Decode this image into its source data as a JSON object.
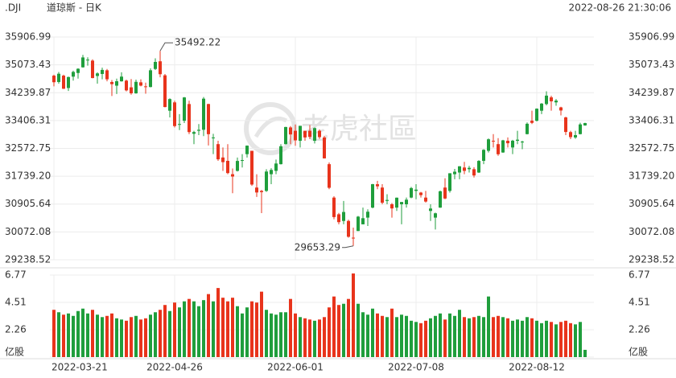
{
  "chart_data": {
    "type": "candlestick",
    "symbol": ".DJI",
    "name": "道琼斯 - 日K",
    "timestamp": "2022-08-26 21:30:06",
    "watermark": "老虎社區",
    "up_color": "#1f9e3c",
    "down_color": "#e8341c",
    "grid": true,
    "categories": [
      "2022-03-21",
      null,
      null,
      null,
      null,
      null,
      null,
      null,
      null,
      null,
      null,
      null,
      null,
      null,
      null,
      null,
      null,
      null,
      null,
      null,
      null,
      null,
      null,
      null,
      null,
      "2022-04-26",
      null,
      null,
      null,
      null,
      null,
      null,
      null,
      null,
      null,
      null,
      null,
      null,
      null,
      null,
      null,
      null,
      null,
      null,
      null,
      null,
      null,
      null,
      null,
      null,
      "2022-06-01",
      null,
      null,
      null,
      null,
      null,
      null,
      null,
      null,
      null,
      null,
      null,
      null,
      null,
      null,
      null,
      null,
      null,
      null,
      null,
      null,
      null,
      null,
      null,
      null,
      "2022-07-08",
      null,
      null,
      null,
      null,
      null,
      null,
      null,
      null,
      null,
      null,
      null,
      null,
      null,
      null,
      null,
      null,
      null,
      null,
      null,
      null,
      null,
      null,
      null,
      null,
      "2022-08-12",
      null,
      null,
      null,
      null,
      null,
      null,
      null,
      null,
      null,
      null
    ],
    "ylim": [
      29238.52,
      35906.99
    ],
    "yticks": [
      35906.99,
      35073.43,
      34239.87,
      33406.31,
      32572.75,
      {
        "value": 31739.2,
        "label": "31739.20"
      },
      30905.64,
      30072.08,
      29238.52
    ],
    "ohlc": [
      [
        34750,
        34780,
        34430,
        34553
      ],
      [
        34560,
        34860,
        34510,
        34807
      ],
      [
        34750,
        34780,
        34350,
        34358
      ],
      [
        34380,
        34720,
        34290,
        34708
      ],
      [
        34720,
        34900,
        34600,
        34862
      ],
      [
        34830,
        34970,
        34660,
        34956
      ],
      [
        35000,
        35372,
        34990,
        35295
      ],
      [
        35220,
        35300,
        35050,
        35229
      ],
      [
        35200,
        35240,
        34670,
        34678
      ],
      [
        34740,
        34850,
        34510,
        34818
      ],
      [
        34800,
        34990,
        34640,
        34922
      ],
      [
        34910,
        34950,
        34580,
        34641
      ],
      [
        34560,
        34620,
        34140,
        34496
      ],
      [
        34450,
        34660,
        34200,
        34583
      ],
      [
        34580,
        34850,
        34570,
        34721
      ],
      [
        34600,
        34630,
        34280,
        34309
      ],
      [
        34400,
        34650,
        34180,
        34221
      ],
      [
        34220,
        34630,
        34210,
        34565
      ],
      [
        34550,
        34640,
        34430,
        34452
      ],
      [
        34430,
        34540,
        34210,
        34412
      ],
      [
        34410,
        34970,
        34400,
        34911
      ],
      [
        34950,
        35270,
        34920,
        35161
      ],
      [
        35180,
        35492.22,
        34700,
        34793
      ],
      [
        34760,
        34800,
        33800,
        33811
      ],
      [
        33700,
        34070,
        33500,
        34049
      ],
      [
        33950,
        34000,
        33200,
        33241
      ],
      [
        33300,
        33600,
        33120,
        33302
      ],
      [
        33400,
        34110,
        33330,
        34098
      ],
      [
        33900,
        34000,
        33000,
        33061
      ],
      [
        33010,
        33100,
        32700,
        33062
      ],
      [
        33100,
        33300,
        32970,
        33129
      ],
      [
        33130,
        34110,
        32940,
        34061
      ],
      [
        33900,
        33910,
        32660,
        32998
      ],
      [
        32900,
        33010,
        32400,
        32900
      ],
      [
        32700,
        32800,
        32200,
        32246
      ],
      [
        32300,
        32600,
        31900,
        32161
      ],
      [
        32200,
        32700,
        31800,
        31834
      ],
      [
        31800,
        31970,
        31230,
        31730
      ],
      [
        31900,
        32300,
        31880,
        32197
      ],
      [
        32200,
        32400,
        32000,
        32223
      ],
      [
        32400,
        32660,
        32300,
        32655
      ],
      [
        32500,
        32500,
        31450,
        31490
      ],
      [
        31400,
        31800,
        31120,
        31253
      ],
      [
        31300,
        31330,
        30635,
        31262
      ],
      [
        31300,
        31950,
        31270,
        31880
      ],
      [
        31800,
        31980,
        31500,
        31928
      ],
      [
        31900,
        32240,
        31800,
        32120
      ],
      [
        32100,
        32700,
        32090,
        32637
      ],
      [
        32700,
        33220,
        32690,
        33213
      ],
      [
        33200,
        33240,
        32700,
        32990
      ],
      [
        33100,
        33290,
        32650,
        32813
      ],
      [
        32800,
        33250,
        32600,
        33248
      ],
      [
        33100,
        33100,
        32800,
        32900
      ],
      [
        33100,
        33270,
        32850,
        32916
      ],
      [
        32800,
        33200,
        32720,
        33180
      ],
      [
        33100,
        33140,
        32860,
        32910
      ],
      [
        32900,
        32950,
        32270,
        32273
      ],
      [
        32100,
        32150,
        31350,
        31393
      ],
      [
        31100,
        31140,
        30450,
        30517
      ],
      [
        30600,
        30640,
        30300,
        30365
      ],
      [
        30400,
        31000,
        30300,
        30669
      ],
      [
        30400,
        30440,
        29900,
        29927
      ],
      [
        29900,
        30200,
        29653.29,
        29888
      ],
      [
        30100,
        30550,
        30100,
        30530
      ],
      [
        30300,
        30800,
        30300,
        30483
      ],
      [
        30500,
        30750,
        30250,
        30677
      ],
      [
        30800,
        31510,
        30780,
        31501
      ],
      [
        31500,
        31600,
        31350,
        31438
      ],
      [
        31400,
        31500,
        30900,
        30947
      ],
      [
        31000,
        31200,
        30900,
        31029
      ],
      [
        30900,
        30940,
        30500,
        30775
      ],
      [
        30800,
        31100,
        30700,
        31097
      ],
      [
        30900,
        30970,
        30300,
        30968
      ],
      [
        30900,
        31100,
        30800,
        31037
      ],
      [
        31100,
        31420,
        31080,
        31385
      ],
      [
        31300,
        31500,
        31050,
        31338
      ],
      [
        31250,
        31270,
        31100,
        31174
      ],
      [
        31100,
        31300,
        30950,
        30981
      ],
      [
        30700,
        30900,
        30400,
        30773
      ],
      [
        30500,
        30650,
        30143,
        30630
      ],
      [
        30800,
        31310,
        30790,
        31289
      ],
      [
        31400,
        31680,
        31050,
        31073
      ],
      [
        31300,
        31830,
        31250,
        31828
      ],
      [
        31800,
        31960,
        31650,
        31875
      ],
      [
        31850,
        32040,
        31650,
        32037
      ],
      [
        32000,
        32170,
        31800,
        31900
      ],
      [
        31950,
        32050,
        31850,
        31990
      ],
      [
        31950,
        32010,
        31700,
        31762
      ],
      [
        31850,
        32220,
        31840,
        32198
      ],
      [
        32200,
        32550,
        32100,
        32530
      ],
      [
        32500,
        32870,
        32450,
        32845
      ],
      [
        32800,
        33000,
        32600,
        32798
      ],
      [
        32700,
        32880,
        32350,
        32397
      ],
      [
        32450,
        32830,
        32440,
        32813
      ],
      [
        32800,
        32900,
        32600,
        32727
      ],
      [
        32600,
        32830,
        32400,
        32803
      ],
      [
        32800,
        33100,
        32700,
        32833
      ],
      [
        32750,
        32800,
        32550,
        32775
      ],
      [
        33000,
        33350,
        32990,
        33310
      ],
      [
        33400,
        33700,
        33300,
        33337
      ],
      [
        33400,
        33770,
        33380,
        33761
      ],
      [
        33700,
        33930,
        33600,
        33913
      ],
      [
        33900,
        34281,
        33860,
        34152
      ],
      [
        34100,
        34150,
        33700,
        33981
      ],
      [
        33950,
        34050,
        33850,
        34003
      ],
      [
        33800,
        33820,
        33560,
        33707
      ],
      [
        33500,
        33520,
        32970,
        33064
      ],
      [
        33060,
        33100,
        32850,
        32910
      ],
      [
        32900,
        33100,
        32860,
        32970
      ],
      [
        33000,
        33340,
        32990,
        33291
      ],
      [
        33260,
        33340,
        33250,
        33330
      ]
    ],
    "volume_ylim": [
      0,
      6.77
    ],
    "volume_ticks": [
      6.77,
      4.51,
      2.26,
      {
        "value": 0,
        "label": "亿股"
      }
    ],
    "volume": [
      3.9,
      3.7,
      3.5,
      3.6,
      3.4,
      3.8,
      4.0,
      3.6,
      3.9,
      3.5,
      3.3,
      3.4,
      3.6,
      3.2,
      3.1,
      3.0,
      3.3,
      3.4,
      3.1,
      3.2,
      3.5,
      3.7,
      3.9,
      4.3,
      3.8,
      4.5,
      4.1,
      4.6,
      4.8,
      4.6,
      4.2,
      4.7,
      5.2,
      4.6,
      5.7,
      4.9,
      4.6,
      4.9,
      4.2,
      3.6,
      4.1,
      4.6,
      4.5,
      5.4,
      3.9,
      3.6,
      3.5,
      3.7,
      3.7,
      4.8,
      3.6,
      3.3,
      3.2,
      3.1,
      3.0,
      3.1,
      3.3,
      4.1,
      5.0,
      4.3,
      4.4,
      4.8,
      6.9,
      4.4,
      3.7,
      3.5,
      4.0,
      3.6,
      3.4,
      3.3,
      4.0,
      3.3,
      3.5,
      3.4,
      3.0,
      2.9,
      2.8,
      3.0,
      3.2,
      3.4,
      3.6,
      3.1,
      3.6,
      3.4,
      3.9,
      3.3,
      3.2,
      3.3,
      3.4,
      3.3,
      5.0,
      3.3,
      3.4,
      3.3,
      3.2,
      3.0,
      3.1,
      3.0,
      3.3,
      3.2,
      3.0,
      2.8,
      3.0,
      2.9,
      2.7,
      2.9,
      3.0,
      2.8,
      2.7,
      2.9,
      0.6
    ]
  }
}
